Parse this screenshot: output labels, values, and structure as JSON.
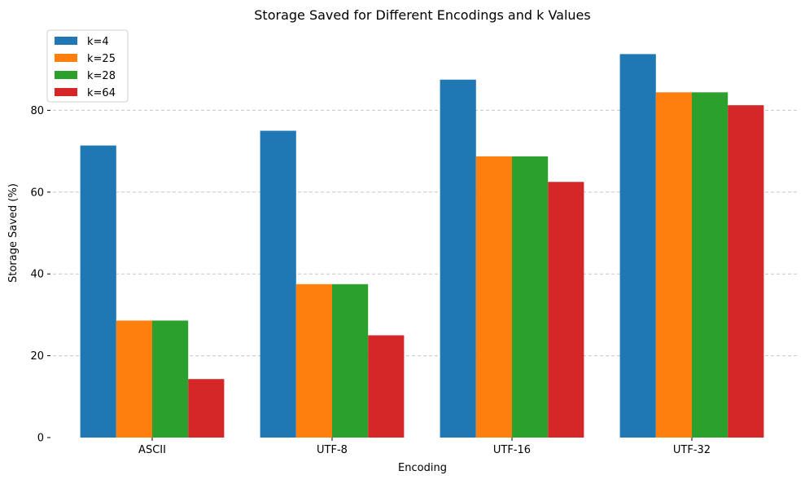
{
  "chart_data": {
    "type": "bar",
    "title": "Storage Saved for Different Encodings and k Values",
    "xlabel": "Encoding",
    "ylabel": "Storage Saved (%)",
    "categories": [
      "ASCII",
      "UTF-8",
      "UTF-16",
      "UTF-32"
    ],
    "series": [
      {
        "name": "k=4",
        "color": "#1f77b4",
        "values": [
          71.4,
          75.0,
          87.5,
          93.75
        ]
      },
      {
        "name": "k=25",
        "color": "#ff7f0e",
        "values": [
          28.6,
          37.5,
          68.75,
          84.4
        ]
      },
      {
        "name": "k=28",
        "color": "#2ca02c",
        "values": [
          28.6,
          37.5,
          68.75,
          84.4
        ]
      },
      {
        "name": "k=64",
        "color": "#d62728",
        "values": [
          14.3,
          25.0,
          62.5,
          81.25
        ]
      }
    ],
    "ylim": [
      0,
      100
    ],
    "yticks": [
      0,
      20,
      40,
      60,
      80
    ],
    "grid": "y-dashed",
    "legend": "top-left"
  }
}
